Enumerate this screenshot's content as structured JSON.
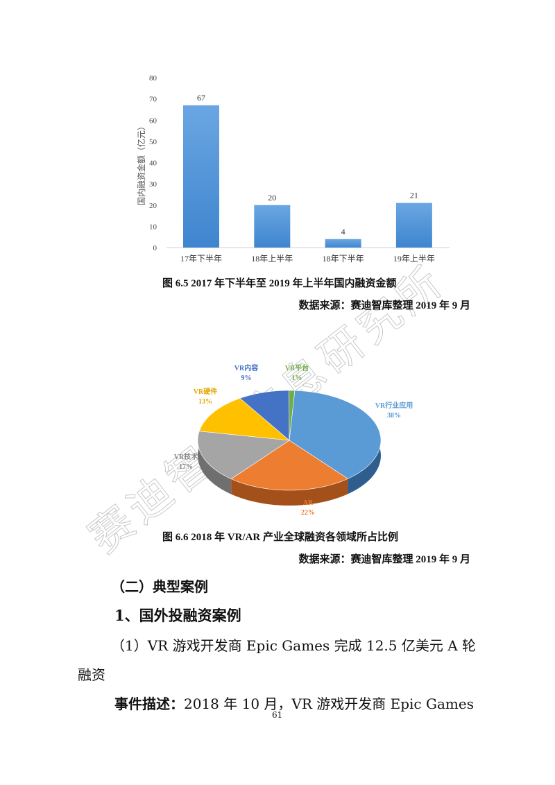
{
  "figure_6_5": {
    "caption": "图 6.5 2017 年下半年至 2019 年上半年国内融资金额",
    "source": "数据来源：赛迪智库整理  2019 年 9 月"
  },
  "figure_6_6": {
    "caption": "图 6.6 2018 年 VR/AR 产业全球融资各领域所占比例",
    "source": "数据来源：赛迪智库整理  2019 年 9 月"
  },
  "chart_data": [
    {
      "type": "bar",
      "categories": [
        "17年下半年",
        "18年上半年",
        "18年下半年",
        "19年上半年"
      ],
      "values": [
        67,
        20,
        4,
        21
      ],
      "data_labels": [
        "67",
        "20",
        "4",
        "21"
      ],
      "ylabel": "国内融资金额（亿元）",
      "ylim": [
        0,
        80
      ],
      "yticks": [
        "0",
        "10",
        "20",
        "30",
        "40",
        "50",
        "60",
        "70",
        "80"
      ],
      "grid": false,
      "color": "#4a8fd6"
    },
    {
      "type": "pie",
      "style": "3d",
      "slices": [
        {
          "label": "VR行业应用",
          "pct_label": "38%",
          "value": 38,
          "color": "#5b9bd5",
          "side": "#2e5e8e"
        },
        {
          "label": "AR",
          "pct_label": "22%",
          "value": 22,
          "color": "#ed7d31",
          "side": "#a4501a"
        },
        {
          "label": "VR技术",
          "pct_label": "17%",
          "value": 17,
          "color": "#a5a5a5",
          "side": "#6f6f6f"
        },
        {
          "label": "VR硬件",
          "pct_label": "13%",
          "value": 13,
          "color": "#ffc000",
          "side": "#b38600"
        },
        {
          "label": "VR内容",
          "pct_label": "9%",
          "value": 9,
          "color": "#4472c4",
          "side": "#2a4a85"
        },
        {
          "label": "VR平台",
          "pct_label": "1%",
          "value": 1,
          "color": "#70ad47",
          "side": "#4b7a2d"
        }
      ]
    }
  ],
  "section": {
    "heading": "（二）典型案例",
    "subheading": "1、国外投融资案例",
    "case_title_line1": "（1）VR 游戏开发商 Epic Games 完成 12.5 亿美元 A 轮",
    "case_title_line2": "融资",
    "event_label": "事件描述：",
    "event_text": "2018 年 10 月，VR 游戏开发商 Epic Games"
  },
  "page_number": "61",
  "watermark": "赛迪智库信息研究所"
}
